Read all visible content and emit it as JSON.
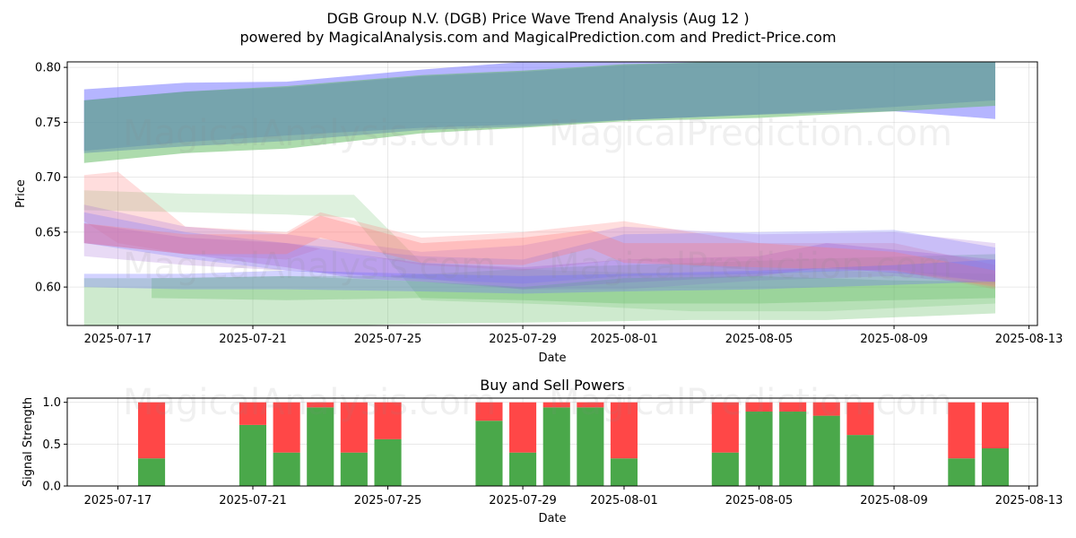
{
  "header": {
    "title": "DGB Group N.V. (DGB) Price Wave Trend Analysis (Aug 12 )",
    "subtitle": "powered by MagicalAnalysis.com and MagicalPrediction.com and Predict-Price.com"
  },
  "watermarks": {
    "top_left": "MagicalAnalysis.com",
    "top_right": "MagicalPrediction.com",
    "mid_left": "MagicalAnalysis.com",
    "mid_right": "MagicalPrediction.com",
    "bottom_left": "MagicalAnalysis.com",
    "bottom_right": "MagicalPrediction.com"
  },
  "chart_data": [
    {
      "type": "area",
      "title": "",
      "xlabel": "Date",
      "ylabel": "Price",
      "x_axis": "date",
      "xlim": [
        "2025-07-15T12:00",
        "2025-08-13T06:00"
      ],
      "ylim": [
        0.565,
        0.805
      ],
      "x_ticks": [
        "2025-07-17",
        "2025-07-21",
        "2025-07-25",
        "2025-07-29",
        "2025-08-01",
        "2025-08-05",
        "2025-08-09",
        "2025-08-13"
      ],
      "y_ticks": [
        0.6,
        0.65,
        0.7,
        0.75,
        0.8
      ],
      "grid": true,
      "colors": {
        "blue": "#6b6bff",
        "green": "#5cb85c",
        "red": "#ff7777",
        "purple": "#a36bd6"
      },
      "series": [
        {
          "color": "blue",
          "opacity": 0.5,
          "x": [
            "2025-07-16",
            "2025-07-19",
            "2025-07-22",
            "2025-07-26",
            "2025-07-29",
            "2025-08-01",
            "2025-08-05",
            "2025-08-09",
            "2025-08-12"
          ],
          "upper": [
            0.78,
            0.786,
            0.787,
            0.798,
            0.805,
            0.808,
            0.808,
            0.808,
            0.808
          ],
          "lower": [
            0.724,
            0.732,
            0.738,
            0.745,
            0.748,
            0.752,
            0.757,
            0.76,
            0.753
          ]
        },
        {
          "color": "blue",
          "opacity": 0.5,
          "x": [
            "2025-07-16",
            "2025-07-19",
            "2025-07-22",
            "2025-07-26",
            "2025-07-29",
            "2025-08-01",
            "2025-08-05",
            "2025-08-09",
            "2025-08-12"
          ],
          "upper": [
            0.77,
            0.778,
            0.782,
            0.792,
            0.796,
            0.802,
            0.806,
            0.806,
            0.806
          ],
          "lower": [
            0.722,
            0.728,
            0.733,
            0.743,
            0.746,
            0.752,
            0.757,
            0.764,
            0.77
          ]
        },
        {
          "color": "green",
          "opacity": 0.5,
          "x": [
            "2025-07-16",
            "2025-07-19",
            "2025-07-22",
            "2025-07-26",
            "2025-07-29",
            "2025-08-01",
            "2025-08-05",
            "2025-08-09",
            "2025-08-12"
          ],
          "upper": [
            0.77,
            0.778,
            0.783,
            0.793,
            0.797,
            0.803,
            0.806,
            0.806,
            0.806
          ],
          "lower": [
            0.713,
            0.722,
            0.726,
            0.74,
            0.745,
            0.751,
            0.754,
            0.76,
            0.765
          ]
        },
        {
          "color": "green",
          "opacity": 0.3,
          "x": [
            "2025-07-16",
            "2025-07-19",
            "2025-07-22",
            "2025-07-24",
            "2025-07-25",
            "2025-07-30",
            "2025-08-03",
            "2025-08-07",
            "2025-08-12"
          ],
          "upper": [
            0.608,
            0.608,
            0.61,
            0.61,
            0.61,
            0.618,
            0.622,
            0.626,
            0.63
          ],
          "lower": [
            0.565,
            0.565,
            0.565,
            0.565,
            0.566,
            0.568,
            0.57,
            0.57,
            0.576
          ]
        },
        {
          "color": "green",
          "opacity": 0.2,
          "x": [
            "2025-07-16",
            "2025-07-19",
            "2025-07-22",
            "2025-07-24",
            "2025-07-26",
            "2025-07-30",
            "2025-08-03",
            "2025-08-07",
            "2025-08-12"
          ],
          "upper": [
            0.688,
            0.685,
            0.684,
            0.684,
            0.622,
            0.615,
            0.612,
            0.615,
            0.612
          ],
          "lower": [
            0.67,
            0.668,
            0.666,
            0.663,
            0.588,
            0.584,
            0.578,
            0.578,
            0.585
          ]
        },
        {
          "color": "red",
          "opacity": 0.25,
          "x": [
            "2025-07-16",
            "2025-07-17",
            "2025-07-19",
            "2025-07-22",
            "2025-07-23",
            "2025-07-26",
            "2025-07-29",
            "2025-08-01",
            "2025-08-05",
            "2025-08-09",
            "2025-08-12"
          ],
          "upper": [
            0.702,
            0.705,
            0.655,
            0.65,
            0.668,
            0.645,
            0.65,
            0.66,
            0.64,
            0.64,
            0.62
          ],
          "lower": [
            0.66,
            0.64,
            0.63,
            0.625,
            0.635,
            0.62,
            0.615,
            0.625,
            0.615,
            0.615,
            0.598
          ]
        },
        {
          "color": "purple",
          "opacity": 0.25,
          "x": [
            "2025-07-16",
            "2025-07-19",
            "2025-07-22",
            "2025-07-26",
            "2025-07-29",
            "2025-08-01",
            "2025-08-05",
            "2025-08-09",
            "2025-08-12"
          ],
          "upper": [
            0.675,
            0.655,
            0.648,
            0.632,
            0.638,
            0.655,
            0.648,
            0.65,
            0.64
          ],
          "lower": [
            0.628,
            0.62,
            0.615,
            0.608,
            0.598,
            0.598,
            0.606,
            0.61,
            0.602
          ]
        },
        {
          "color": "blue",
          "opacity": 0.25,
          "x": [
            "2025-07-16",
            "2025-07-19",
            "2025-07-22",
            "2025-07-26",
            "2025-07-29",
            "2025-08-01",
            "2025-08-05",
            "2025-08-09",
            "2025-08-12"
          ],
          "upper": [
            0.668,
            0.65,
            0.64,
            0.628,
            0.625,
            0.648,
            0.65,
            0.652,
            0.636
          ],
          "lower": [
            0.64,
            0.626,
            0.615,
            0.607,
            0.603,
            0.61,
            0.612,
            0.616,
            0.604
          ]
        },
        {
          "color": "purple",
          "opacity": 0.35,
          "x": [
            "2025-07-16",
            "2025-07-19",
            "2025-07-22",
            "2025-07-24",
            "2025-07-26",
            "2025-07-29",
            "2025-08-01",
            "2025-08-05",
            "2025-08-07",
            "2025-08-12"
          ],
          "upper": [
            0.658,
            0.645,
            0.64,
            0.63,
            0.622,
            0.618,
            0.625,
            0.628,
            0.64,
            0.625
          ],
          "lower": [
            0.64,
            0.63,
            0.618,
            0.608,
            0.605,
            0.598,
            0.604,
            0.61,
            0.618,
            0.605
          ]
        },
        {
          "color": "green",
          "opacity": 0.3,
          "x": [
            "2025-07-18",
            "2025-07-22",
            "2025-07-26",
            "2025-07-29",
            "2025-08-01",
            "2025-08-05",
            "2025-08-09",
            "2025-08-12"
          ],
          "upper": [
            0.608,
            0.61,
            0.605,
            0.6,
            0.608,
            0.61,
            0.606,
            0.605
          ],
          "lower": [
            0.59,
            0.588,
            0.59,
            0.588,
            0.585,
            0.585,
            0.588,
            0.59
          ]
        },
        {
          "color": "red",
          "opacity": 0.3,
          "x": [
            "2025-07-16",
            "2025-07-19",
            "2025-07-22",
            "2025-07-23",
            "2025-07-26",
            "2025-07-29",
            "2025-07-31",
            "2025-08-01",
            "2025-08-05",
            "2025-08-09",
            "2025-08-12"
          ],
          "upper": [
            0.658,
            0.648,
            0.648,
            0.665,
            0.64,
            0.645,
            0.652,
            0.64,
            0.64,
            0.632,
            0.615
          ],
          "lower": [
            0.64,
            0.63,
            0.63,
            0.645,
            0.622,
            0.62,
            0.635,
            0.622,
            0.618,
            0.615,
            0.6
          ]
        },
        {
          "color": "blue",
          "opacity": 0.3,
          "x": [
            "2025-07-16",
            "2025-07-19",
            "2025-07-22",
            "2025-07-26",
            "2025-07-29",
            "2025-08-01",
            "2025-08-05",
            "2025-08-09",
            "2025-08-12"
          ],
          "upper": [
            0.612,
            0.612,
            0.615,
            0.612,
            0.61,
            0.612,
            0.615,
            0.62,
            0.625
          ],
          "lower": [
            0.6,
            0.598,
            0.598,
            0.596,
            0.594,
            0.596,
            0.598,
            0.602,
            0.605
          ]
        }
      ]
    },
    {
      "type": "bar",
      "title": "Buy and Sell Powers",
      "xlabel": "Date",
      "ylabel": "Signal Strength",
      "x_axis": "date",
      "xlim": [
        "2025-07-15T12:00",
        "2025-08-13T06:00"
      ],
      "ylim": [
        0,
        1.05
      ],
      "x_ticks": [
        "2025-07-17",
        "2025-07-21",
        "2025-07-25",
        "2025-07-29",
        "2025-08-01",
        "2025-08-05",
        "2025-08-09",
        "2025-08-13"
      ],
      "y_ticks": [
        0.0,
        0.5,
        1.0
      ],
      "grid": true,
      "colors": {
        "buy": "#4aa84a",
        "sell": "#ff4747"
      },
      "series": [
        {
          "name": "buy",
          "dates": [
            "2025-07-18",
            "2025-07-21",
            "2025-07-22",
            "2025-07-23",
            "2025-07-24",
            "2025-07-25",
            "2025-07-28",
            "2025-07-29",
            "2025-07-30",
            "2025-07-31",
            "2025-08-01",
            "2025-08-04",
            "2025-08-05",
            "2025-08-06",
            "2025-08-07",
            "2025-08-08",
            "2025-08-11",
            "2025-08-12"
          ],
          "values": [
            0.33,
            0.73,
            0.4,
            0.94,
            0.4,
            0.56,
            0.78,
            0.4,
            0.94,
            0.94,
            0.33,
            0.4,
            0.89,
            0.89,
            0.84,
            0.61,
            0.33,
            0.45
          ]
        },
        {
          "name": "sell",
          "dates": [
            "2025-07-18",
            "2025-07-21",
            "2025-07-22",
            "2025-07-23",
            "2025-07-24",
            "2025-07-25",
            "2025-07-28",
            "2025-07-29",
            "2025-07-30",
            "2025-07-31",
            "2025-08-01",
            "2025-08-04",
            "2025-08-05",
            "2025-08-06",
            "2025-08-07",
            "2025-08-08",
            "2025-08-11",
            "2025-08-12"
          ],
          "values": [
            0.67,
            0.27,
            0.6,
            0.06,
            0.6,
            0.44,
            0.22,
            0.6,
            0.06,
            0.06,
            0.67,
            0.6,
            0.11,
            0.11,
            0.16,
            0.39,
            0.67,
            0.55
          ]
        }
      ]
    }
  ]
}
